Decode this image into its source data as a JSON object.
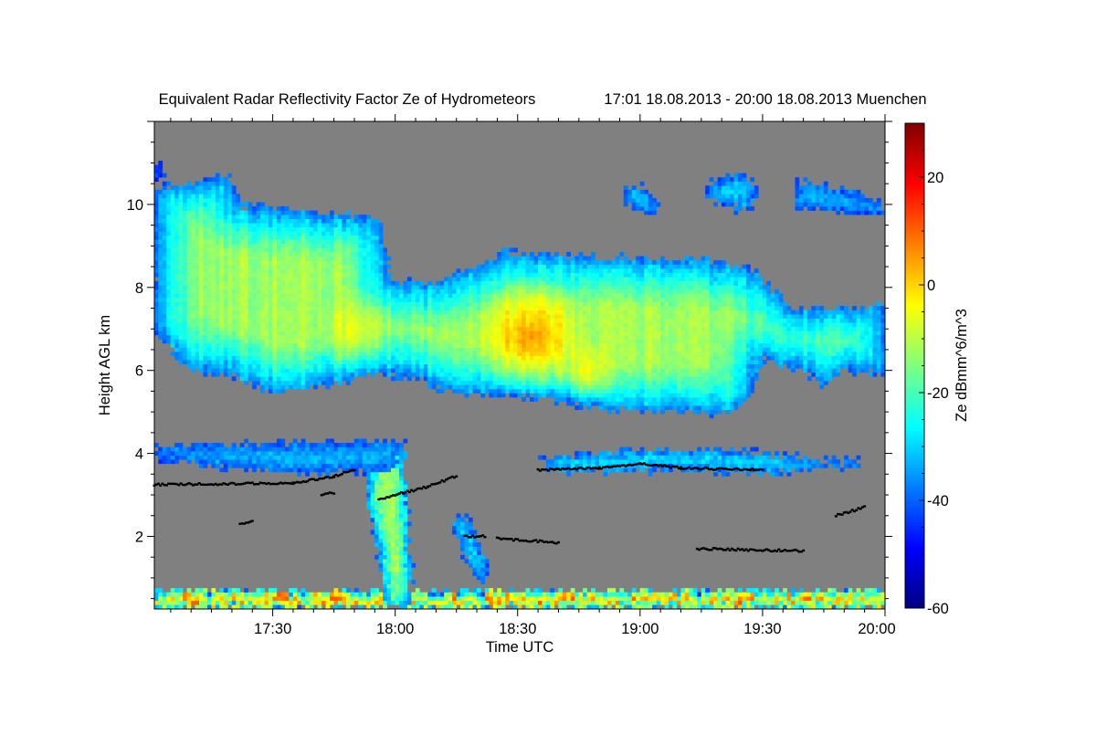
{
  "chart_data": {
    "type": "heatmap",
    "title": "Equivalent Radar Reflectivity Factor Ze of Hydrometeors",
    "subtitle": "17:01 18.08.2013 - 20:00 18.08.2013 Muenchen",
    "xlabel": "Time UTC",
    "ylabel": "Height AGL km",
    "xlim": [
      "17:01",
      "20:00"
    ],
    "ylim": [
      0.25,
      12.0
    ],
    "x_ticks": [
      "17:30",
      "18:00",
      "18:30",
      "19:00",
      "19:30",
      "20:00"
    ],
    "y_ticks": [
      2,
      4,
      6,
      8,
      10
    ],
    "colorbar": {
      "label": "Ze dBmm^6/m^3",
      "range": [
        -60,
        30
      ],
      "ticks": [
        20,
        0,
        -20,
        -40,
        -60
      ],
      "colormap": "jet"
    },
    "background_color": "#808080",
    "echo_features": [
      {
        "name": "main-cirrus-anvil",
        "core_ze": -12,
        "edge_ze": -40,
        "depth_km": 1.2,
        "outline": [
          [
            "17:01",
            10.4
          ],
          [
            "17:10",
            10.5
          ],
          [
            "17:19",
            10.7
          ],
          [
            "17:22",
            10.0
          ],
          [
            "17:30",
            9.9
          ],
          [
            "17:42",
            9.8
          ],
          [
            "17:55",
            9.7
          ],
          [
            "17:57",
            9.3
          ],
          [
            "17:59",
            8.2
          ],
          [
            "18:10",
            8.1
          ],
          [
            "18:15",
            8.3
          ],
          [
            "18:27",
            8.9
          ],
          [
            "18:38",
            8.8
          ],
          [
            "19:00",
            8.7
          ],
          [
            "19:14",
            8.7
          ],
          [
            "19:25",
            8.5
          ],
          [
            "19:29",
            8.3
          ],
          [
            "19:33",
            7.9
          ],
          [
            "19:37",
            7.5
          ],
          [
            "19:50",
            7.5
          ],
          [
            "20:00",
            7.6
          ],
          [
            "20:00",
            5.9
          ],
          [
            "19:50",
            6.0
          ],
          [
            "19:45",
            5.6
          ],
          [
            "19:40",
            6.0
          ],
          [
            "19:34",
            6.1
          ],
          [
            "19:30",
            6.3
          ],
          [
            "19:27",
            5.4
          ],
          [
            "19:23",
            4.9
          ],
          [
            "19:14",
            5.0
          ],
          [
            "19:00",
            5.0
          ],
          [
            "18:49",
            5.1
          ],
          [
            "18:38",
            5.3
          ],
          [
            "18:27",
            5.4
          ],
          [
            "18:15",
            5.4
          ],
          [
            "18:05",
            5.8
          ],
          [
            "17:57",
            5.9
          ],
          [
            "17:42",
            5.6
          ],
          [
            "17:30",
            5.4
          ],
          [
            "17:19",
            5.9
          ],
          [
            "17:10",
            6.0
          ],
          [
            "17:05",
            6.5
          ],
          [
            "17:01",
            7.0
          ]
        ]
      },
      {
        "name": "cirrus-patch-a",
        "core_ze": -30,
        "edge_ze": -44,
        "depth_km": 0.3,
        "outline": [
          [
            "18:56",
            10.4
          ],
          [
            "19:00",
            10.5
          ],
          [
            "19:03",
            10.2
          ],
          [
            "19:05",
            9.8
          ],
          [
            "19:00",
            9.8
          ],
          [
            "18:56",
            10.0
          ]
        ]
      },
      {
        "name": "cirrus-patch-b",
        "core_ze": -30,
        "edge_ze": -44,
        "depth_km": 0.3,
        "outline": [
          [
            "19:16",
            10.5
          ],
          [
            "19:25",
            10.8
          ],
          [
            "19:29",
            10.4
          ],
          [
            "19:27",
            9.8
          ],
          [
            "19:20",
            10.0
          ],
          [
            "19:16",
            10.1
          ]
        ]
      },
      {
        "name": "cirrus-patch-c",
        "core_ze": -32,
        "edge_ze": -44,
        "depth_km": 0.3,
        "outline": [
          [
            "19:38",
            10.6
          ],
          [
            "19:50",
            10.4
          ],
          [
            "20:00",
            10.0
          ],
          [
            "20:00",
            9.7
          ],
          [
            "19:50",
            9.8
          ],
          [
            "19:38",
            9.9
          ]
        ]
      },
      {
        "name": "cirrus-patch-d",
        "core_ze": -40,
        "edge_ze": -46,
        "depth_km": 0.2,
        "outline": [
          [
            "17:01",
            11.0
          ],
          [
            "17:04",
            10.9
          ],
          [
            "17:03",
            10.6
          ],
          [
            "17:01",
            10.6
          ]
        ]
      },
      {
        "name": "mid-layer-west",
        "core_ze": -33,
        "edge_ze": -44,
        "depth_km": 0.3,
        "outline": [
          [
            "17:01",
            4.2
          ],
          [
            "17:58",
            4.3
          ],
          [
            "18:02",
            4.3
          ],
          [
            "18:00",
            3.6
          ],
          [
            "17:40",
            3.5
          ],
          [
            "17:20",
            3.6
          ],
          [
            "17:01",
            3.9
          ]
        ]
      },
      {
        "name": "mid-layer-east",
        "core_ze": -27,
        "edge_ze": -42,
        "depth_km": 0.3,
        "outline": [
          [
            "18:35",
            3.9
          ],
          [
            "19:00",
            4.1
          ],
          [
            "19:20",
            4.1
          ],
          [
            "19:40",
            3.9
          ],
          [
            "19:55",
            3.8
          ],
          [
            "19:55",
            3.7
          ],
          [
            "19:30",
            3.5
          ],
          [
            "19:10",
            3.6
          ],
          [
            "18:40",
            3.5
          ]
        ]
      },
      {
        "name": "precipitation-streak",
        "core_ze": -12,
        "edge_ze": -40,
        "depth_km": 0.35,
        "outline": [
          [
            "17:55",
            4.3
          ],
          [
            "18:02",
            4.3
          ],
          [
            "18:03",
            3.0
          ],
          [
            "18:04",
            1.0
          ],
          [
            "18:03",
            0.3
          ],
          [
            "17:58",
            0.3
          ],
          [
            "17:56",
            1.5
          ],
          [
            "17:53",
            3.0
          ]
        ]
      },
      {
        "name": "virga-streak",
        "core_ze": -30,
        "edge_ze": -42,
        "depth_km": 0.2,
        "outline": [
          [
            "18:15",
            2.6
          ],
          [
            "18:18",
            2.4
          ],
          [
            "18:23",
            1.2
          ],
          [
            "18:22",
            0.8
          ],
          [
            "18:18",
            1.3
          ],
          [
            "18:14",
            2.2
          ]
        ]
      },
      {
        "name": "ground-clutter",
        "core_ze": -2,
        "edge_ze": -35,
        "depth_km": 0.2,
        "outline": [
          [
            "17:01",
            0.7
          ],
          [
            "20:00",
            0.7
          ],
          [
            "20:00",
            0.25
          ],
          [
            "17:01",
            0.25
          ]
        ]
      }
    ],
    "hotspots": [
      {
        "time": "18:33",
        "km": 6.8,
        "ze": 6,
        "radius_km": 0.9
      },
      {
        "time": "18:47",
        "km": 6.0,
        "ze": -3,
        "radius_km": 0.5
      },
      {
        "time": "17:50",
        "km": 7.0,
        "ze": -6,
        "radius_km": 0.6
      }
    ],
    "melting_layer_dots": [
      [
        [
          "17:01",
          3.25
        ],
        [
          "17:35",
          3.28
        ],
        [
          "17:45",
          3.45
        ],
        [
          "17:50",
          3.6
        ]
      ],
      [
        [
          "17:56",
          2.9
        ],
        [
          "18:02",
          3.05
        ],
        [
          "18:08",
          3.2
        ],
        [
          "18:15",
          3.45
        ]
      ],
      [
        [
          "18:35",
          3.6
        ],
        [
          "18:50",
          3.65
        ],
        [
          "19:00",
          3.75
        ],
        [
          "19:10",
          3.65
        ],
        [
          "19:30",
          3.6
        ]
      ],
      [
        [
          "18:17",
          2.0
        ],
        [
          "18:22",
          2.0
        ]
      ],
      [
        [
          "18:25",
          1.95
        ],
        [
          "18:40",
          1.85
        ]
      ],
      [
        [
          "19:14",
          1.7
        ],
        [
          "19:40",
          1.65
        ]
      ],
      [
        [
          "17:22",
          2.3
        ],
        [
          "17:25",
          2.35
        ]
      ],
      [
        [
          "17:42",
          3.0
        ],
        [
          "17:45",
          3.05
        ]
      ],
      [
        [
          "19:48",
          2.5
        ],
        [
          "19:55",
          2.7
        ]
      ]
    ]
  }
}
